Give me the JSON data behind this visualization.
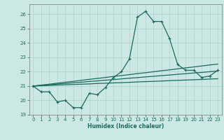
{
  "xlabel": "Humidex (Indice chaleur)",
  "background_color": "#cce8e4",
  "grid_color": "#b0cfcb",
  "line_color": "#1a6b5a",
  "xlim": [
    -0.5,
    23.5
  ],
  "ylim": [
    19,
    26.7
  ],
  "yticks": [
    19,
    20,
    21,
    22,
    23,
    24,
    25,
    26
  ],
  "xticks": [
    0,
    1,
    2,
    3,
    4,
    5,
    6,
    7,
    8,
    9,
    10,
    11,
    12,
    13,
    14,
    15,
    16,
    17,
    18,
    19,
    20,
    21,
    22,
    23
  ],
  "main_series": [
    21.0,
    20.6,
    20.6,
    19.9,
    20.0,
    19.5,
    19.5,
    20.5,
    20.4,
    20.9,
    21.6,
    22.0,
    22.9,
    25.8,
    26.2,
    25.5,
    25.5,
    24.3,
    22.5,
    22.1,
    22.1,
    21.6,
    21.7,
    22.1
  ],
  "line1": [
    21.0,
    21.07,
    21.13,
    21.2,
    21.27,
    21.33,
    21.4,
    21.47,
    21.53,
    21.6,
    21.67,
    21.73,
    21.8,
    21.87,
    21.93,
    22.0,
    22.07,
    22.13,
    22.2,
    22.27,
    22.33,
    22.4,
    22.47,
    22.53
  ],
  "line2": [
    21.0,
    21.05,
    21.09,
    21.14,
    21.18,
    21.23,
    21.27,
    21.32,
    21.36,
    21.41,
    21.45,
    21.5,
    21.55,
    21.59,
    21.64,
    21.68,
    21.73,
    21.77,
    21.82,
    21.86,
    21.91,
    21.95,
    22.0,
    22.05
  ],
  "line3": [
    21.0,
    21.02,
    21.04,
    21.07,
    21.09,
    21.11,
    21.13,
    21.15,
    21.18,
    21.2,
    21.22,
    21.24,
    21.26,
    21.29,
    21.31,
    21.33,
    21.35,
    21.38,
    21.4,
    21.42,
    21.44,
    21.46,
    21.49,
    21.51
  ]
}
